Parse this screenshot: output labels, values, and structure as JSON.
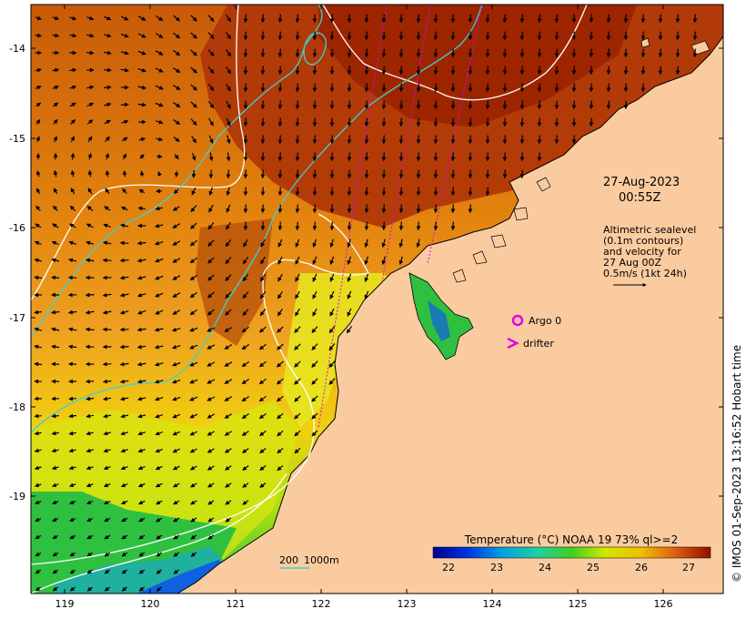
{
  "map": {
    "date": "27-Aug-2023",
    "time": "00:55Z",
    "altimetry_note": [
      "Altimetric sealevel",
      "(0.1m contours)",
      "and velocity for",
      "27 Aug 00Z",
      "0.5m/s (1kt 24h)"
    ],
    "legend": {
      "argo_label": "Argo 0",
      "drifter_label": "drifter"
    },
    "contour_label": {
      "shallow": "200",
      "deep": "1000m"
    },
    "colorbar": {
      "title": "Temperature (°C) NOAA 19 73% ql>=2",
      "ticks": [
        "22",
        "23",
        "24",
        "25",
        "26",
        "27"
      ]
    },
    "side_credit": "© IMOS 01-Sep-2023 13:16:52 Hobart time",
    "axes": {
      "lon_ticks": [
        "119",
        "120",
        "121",
        "122",
        "123",
        "124",
        "125",
        "126"
      ],
      "lat_ticks": [
        "-14",
        "-15",
        "-16",
        "-17",
        "-18",
        "-19"
      ]
    },
    "colors": {
      "land": "#fbcba0",
      "warm": "#a83000",
      "hot_orange": "#e87a10",
      "yellow": "#eef000",
      "green": "#20c030",
      "blue": "#1060e0",
      "isobath": "#40d0d0",
      "sealevel_contour": "#ffffff",
      "track": "#e000e0"
    }
  }
}
